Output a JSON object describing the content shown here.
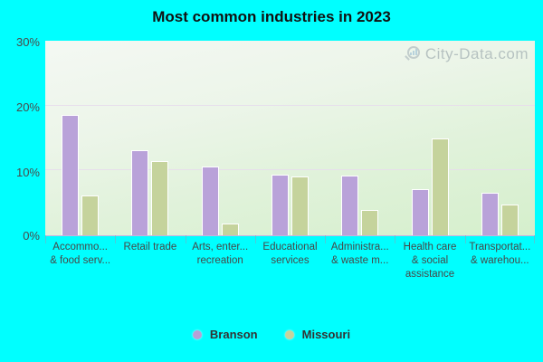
{
  "title": "Most common industries in 2023",
  "watermark": {
    "text": "City-Data.com"
  },
  "y_axis": {
    "labels": [
      "30%",
      "20%",
      "10%",
      "0%"
    ],
    "max_percent": 30
  },
  "legend": {
    "items": [
      {
        "label": "Branson",
        "color": "#b7a0d6"
      },
      {
        "label": "Missouri",
        "color": "#c6d39d"
      }
    ]
  },
  "chart_data": {
    "type": "bar",
    "title": "Most common industries in 2023",
    "categories": [
      "Accommo... & food serv...",
      "Retail trade",
      "Arts, enter... recreation",
      "Educational services",
      "Administra... & waste m...",
      "Health care & social assistance",
      "Transportat... & warehou..."
    ],
    "category_label_lines": [
      [
        "Accommo...",
        "& food serv..."
      ],
      [
        "Retail trade"
      ],
      [
        "Arts, enter...",
        "recreation"
      ],
      [
        "Educational",
        "services"
      ],
      [
        "Administra...",
        "& waste m..."
      ],
      [
        "Health care",
        "& social",
        "assistance"
      ],
      [
        "Transportat...",
        "& warehou..."
      ]
    ],
    "series": [
      {
        "name": "Branson",
        "color": "#b9a2d9",
        "values": [
          18.6,
          13.1,
          10.6,
          9.3,
          9.2,
          7.1,
          6.6
        ]
      },
      {
        "name": "Missouri",
        "color": "#c5d39c",
        "values": [
          6.1,
          11.4,
          1.8,
          9.1,
          3.9,
          14.9,
          4.7
        ]
      }
    ],
    "xlabel": "",
    "ylabel": "",
    "ylim": [
      0,
      30
    ],
    "grid": "horizontal-10-20",
    "legend_position": "bottom",
    "background": "#00ffff",
    "plot_gradient": [
      "#f4f8f3",
      "#d5efcc"
    ]
  }
}
